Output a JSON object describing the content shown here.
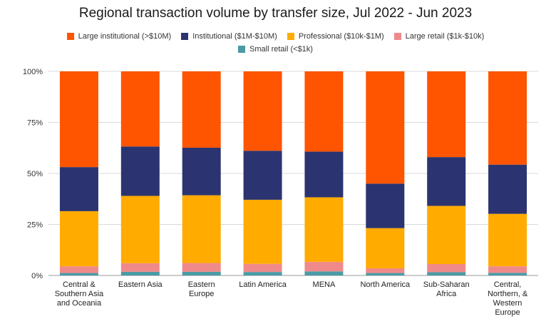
{
  "chart_data": {
    "type": "bar",
    "stacked": true,
    "title": "Regional transaction volume by transfer size, Jul 2022 - Jun 2023",
    "xlabel": "",
    "ylabel": "",
    "ylim": [
      0,
      100
    ],
    "y_ticks": [
      "0%",
      "25%",
      "50%",
      "75%",
      "100%"
    ],
    "y_tick_values": [
      0,
      25,
      50,
      75,
      100
    ],
    "categories": [
      [
        "Central &",
        "Southern Asia",
        "and Oceania"
      ],
      [
        "Eastern Asia"
      ],
      [
        "Eastern",
        "Europe"
      ],
      [
        "Latin America"
      ],
      [
        "MENA"
      ],
      [
        "North America"
      ],
      [
        "Sub-Saharan",
        "Africa"
      ],
      [
        "Central,",
        "Northern, &",
        "Western",
        "Europe"
      ]
    ],
    "legend_placement": "top",
    "series": [
      {
        "name": "Small retail (<$1k)",
        "color": "#4a9ba6",
        "values": [
          1.2,
          1.8,
          1.8,
          1.7,
          2.0,
          1.2,
          1.6,
          1.3
        ]
      },
      {
        "name": "Large retail ($1k-$10k)",
        "color": "#f08a8a",
        "values": [
          3.3,
          4.2,
          4.3,
          4.0,
          4.7,
          2.3,
          4.0,
          3.2
        ]
      },
      {
        "name": "Professional ($10k-$1M)",
        "color": "#ffab00",
        "values": [
          27.0,
          33.0,
          33.2,
          31.4,
          31.6,
          19.7,
          28.5,
          25.7
        ]
      },
      {
        "name": "Institutional ($1M-$10M)",
        "color": "#2b3470",
        "values": [
          21.6,
          24.2,
          23.3,
          24.0,
          22.4,
          21.8,
          23.9,
          24.1
        ]
      },
      {
        "name": "Large institutional (>$10M)",
        "color": "#ff5400",
        "values": [
          46.9,
          36.8,
          37.4,
          38.9,
          39.3,
          55.0,
          42.0,
          45.7
        ]
      }
    ]
  },
  "legend": {
    "row1": [
      {
        "label": "Large institutional (>$10M)",
        "color": "#ff5400"
      },
      {
        "label": "Institutional ($1M-$10M)",
        "color": "#2b3470"
      },
      {
        "label": "Professional ($10k-$1M)",
        "color": "#ffab00"
      },
      {
        "label": "Large retail ($1k-$10k)",
        "color": "#f08a8a"
      }
    ],
    "row2": [
      {
        "label": "Small retail (<$1k)",
        "color": "#4a9ba6"
      }
    ]
  },
  "colors": {
    "grid": "#d9d9d9",
    "axis": "#999999"
  }
}
